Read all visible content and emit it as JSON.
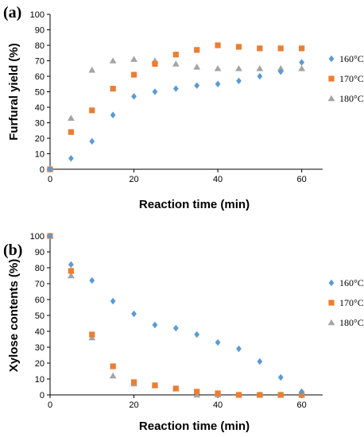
{
  "chart_data": [
    {
      "type": "scatter",
      "panel_label": "(a)",
      "xlabel": "Reaction time (min)",
      "ylabel": "Furfural yield (%)",
      "xlim": [
        0,
        65
      ],
      "ylim": [
        0,
        100
      ],
      "xticks": [
        0,
        20,
        40,
        60
      ],
      "yticks": [
        0,
        10,
        20,
        30,
        40,
        50,
        60,
        70,
        80,
        90,
        100
      ],
      "legend_position": "right",
      "series": [
        {
          "name": "160°C",
          "marker": "diamond",
          "color": "#5B9BD5",
          "x": [
            0,
            5,
            10,
            15,
            20,
            25,
            30,
            35,
            40,
            45,
            50,
            55,
            60
          ],
          "y": [
            0,
            7,
            18,
            35,
            47,
            50,
            52,
            54,
            55,
            57,
            60,
            63,
            69
          ]
        },
        {
          "name": "170°C",
          "marker": "square",
          "color": "#ED7D31",
          "x": [
            0,
            5,
            10,
            15,
            20,
            25,
            30,
            35,
            40,
            45,
            50,
            55,
            60
          ],
          "y": [
            0,
            24,
            38,
            52,
            61,
            68,
            74,
            77,
            80,
            79,
            78,
            78,
            78
          ]
        },
        {
          "name": "180°C",
          "marker": "triangle",
          "color": "#A5A5A5",
          "x": [
            0,
            5,
            10,
            15,
            20,
            25,
            30,
            35,
            40,
            45,
            50,
            55,
            60
          ],
          "y": [
            0,
            33,
            64,
            70,
            71,
            70,
            68,
            66,
            65,
            65,
            65,
            65,
            65
          ]
        }
      ]
    },
    {
      "type": "scatter",
      "panel_label": "(b)",
      "xlabel": "Reaction time (min)",
      "ylabel": "Xylose contents (%)",
      "xlim": [
        0,
        65
      ],
      "ylim": [
        0,
        100
      ],
      "xticks": [
        0,
        20,
        40,
        60
      ],
      "yticks": [
        0,
        10,
        20,
        30,
        40,
        50,
        60,
        70,
        80,
        90,
        100
      ],
      "legend_position": "right",
      "series": [
        {
          "name": "160°C",
          "marker": "diamond",
          "color": "#5B9BD5",
          "x": [
            0,
            5,
            10,
            15,
            20,
            25,
            30,
            35,
            40,
            45,
            50,
            55,
            60
          ],
          "y": [
            100,
            82,
            72,
            59,
            51,
            44,
            42,
            38,
            33,
            29,
            21,
            11,
            2
          ]
        },
        {
          "name": "170°C",
          "marker": "square",
          "color": "#ED7D31",
          "x": [
            0,
            5,
            10,
            15,
            20,
            25,
            30,
            35,
            40,
            45,
            50,
            55,
            60
          ],
          "y": [
            100,
            78,
            38,
            18,
            8,
            6,
            4,
            2,
            1,
            0,
            0,
            0,
            0
          ]
        },
        {
          "name": "180°C",
          "marker": "triangle",
          "color": "#A5A5A5",
          "x": [
            0,
            5,
            10,
            15,
            20,
            25,
            30,
            35,
            40,
            45,
            50,
            55,
            60
          ],
          "y": [
            100,
            75,
            36,
            12,
            7,
            6,
            4,
            0,
            0,
            0,
            0,
            0,
            0
          ]
        }
      ]
    }
  ]
}
